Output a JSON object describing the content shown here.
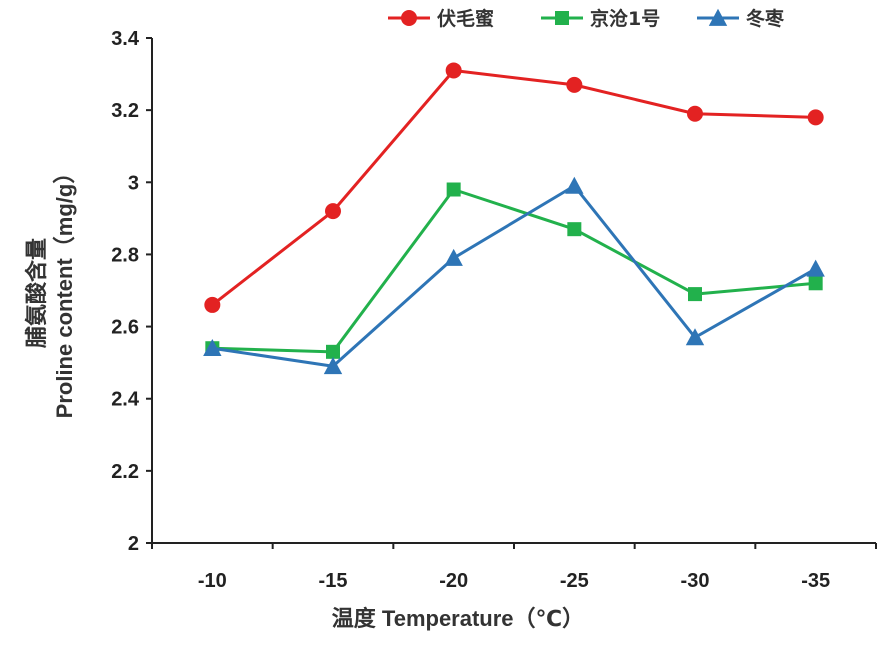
{
  "chart_data": {
    "type": "line",
    "categories": [
      "-10",
      "-15",
      "-20",
      "-25",
      "-30",
      "-35"
    ],
    "xlabel": "温度 Temperature（℃）",
    "ylabel_cn": "脯氨酸含量",
    "ylabel_en": "Proline content（mg/g）",
    "ylim": [
      2,
      3.4
    ],
    "yticks": [
      "2",
      "2.2",
      "2.4",
      "2.6",
      "2.8",
      "3",
      "3.2",
      "3.4"
    ],
    "grid": false,
    "legend_position": "top-right",
    "series": [
      {
        "name": "伏毛蜜",
        "color": "#e32222",
        "marker": "circle",
        "values": [
          2.66,
          2.92,
          3.31,
          3.27,
          3.19,
          3.18
        ]
      },
      {
        "name": "京沧1号",
        "color": "#22b14c",
        "marker": "square",
        "values": [
          2.54,
          2.53,
          2.98,
          2.87,
          2.69,
          2.72
        ]
      },
      {
        "name": "冬枣",
        "color": "#2e75b6",
        "marker": "triangle",
        "values": [
          2.54,
          2.49,
          2.79,
          2.99,
          2.57,
          2.76
        ]
      }
    ]
  }
}
